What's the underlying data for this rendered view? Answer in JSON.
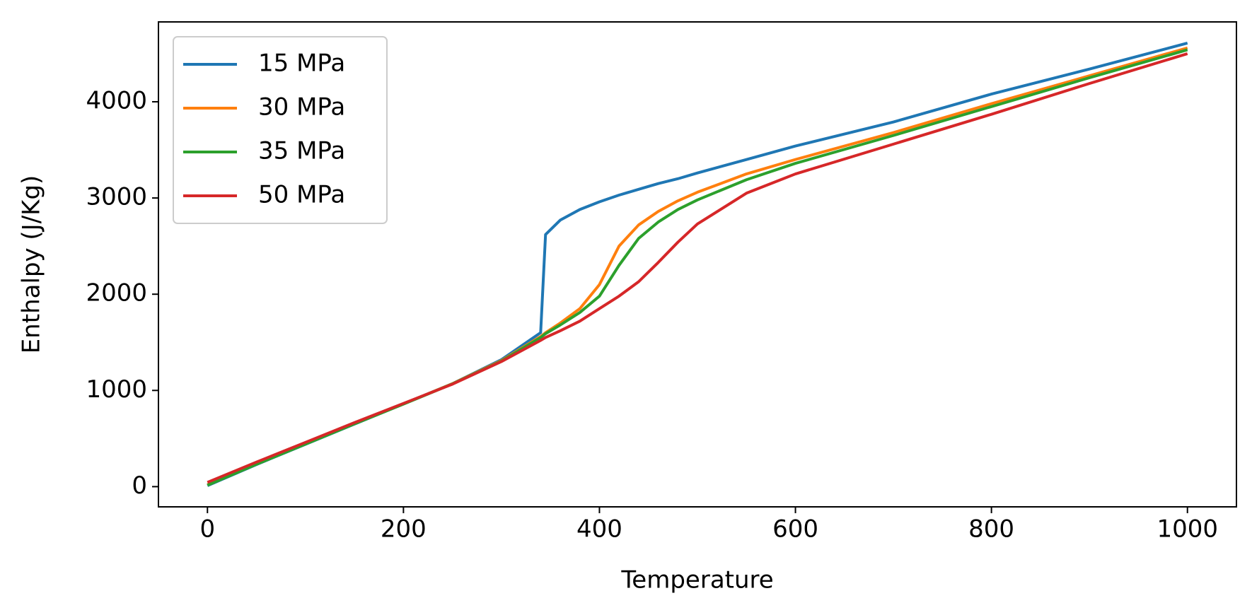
{
  "chart_data": {
    "type": "line",
    "x_label": "Temperature",
    "y_label": "Enthalpy (J/Kg)",
    "x": [
      0,
      50,
      100,
      150,
      200,
      250,
      300,
      340,
      345,
      360,
      380,
      400,
      420,
      440,
      460,
      480,
      500,
      550,
      600,
      700,
      800,
      900,
      1000
    ],
    "series": [
      {
        "name": "15 MPa",
        "color": "#1f77b4",
        "values": [
          10,
          230,
          440,
          650,
          860,
          1070,
          1320,
          1600,
          2620,
          2770,
          2880,
          2960,
          3030,
          3090,
          3150,
          3200,
          3260,
          3400,
          3540,
          3790,
          4080,
          4340,
          4610
        ]
      },
      {
        "name": "30 MPa",
        "color": "#ff7f0e",
        "values": [
          20,
          235,
          445,
          655,
          860,
          1070,
          1310,
          1560,
          1600,
          1700,
          1850,
          2100,
          2500,
          2720,
          2860,
          2970,
          3060,
          3250,
          3400,
          3680,
          3980,
          4270,
          4560
        ]
      },
      {
        "name": "35 MPa",
        "color": "#2ca02c",
        "values": [
          15,
          232,
          442,
          652,
          858,
          1068,
          1305,
          1550,
          1590,
          1680,
          1810,
          1980,
          2300,
          2580,
          2750,
          2880,
          2980,
          3190,
          3360,
          3650,
          3950,
          4250,
          4540
        ]
      },
      {
        "name": "50 MPa",
        "color": "#d62728",
        "values": [
          45,
          255,
          460,
          665,
          865,
          1065,
          1300,
          1520,
          1550,
          1620,
          1720,
          1850,
          1980,
          2130,
          2330,
          2540,
          2730,
          3050,
          3250,
          3560,
          3870,
          4190,
          4500
        ]
      }
    ],
    "xlim": [
      -50,
      1050
    ],
    "ylim": [
      -210,
      4830
    ],
    "xticks": [
      0,
      200,
      400,
      600,
      800,
      1000
    ],
    "yticks": [
      0,
      1000,
      2000,
      3000,
      4000
    ],
    "legend": "upper left"
  }
}
